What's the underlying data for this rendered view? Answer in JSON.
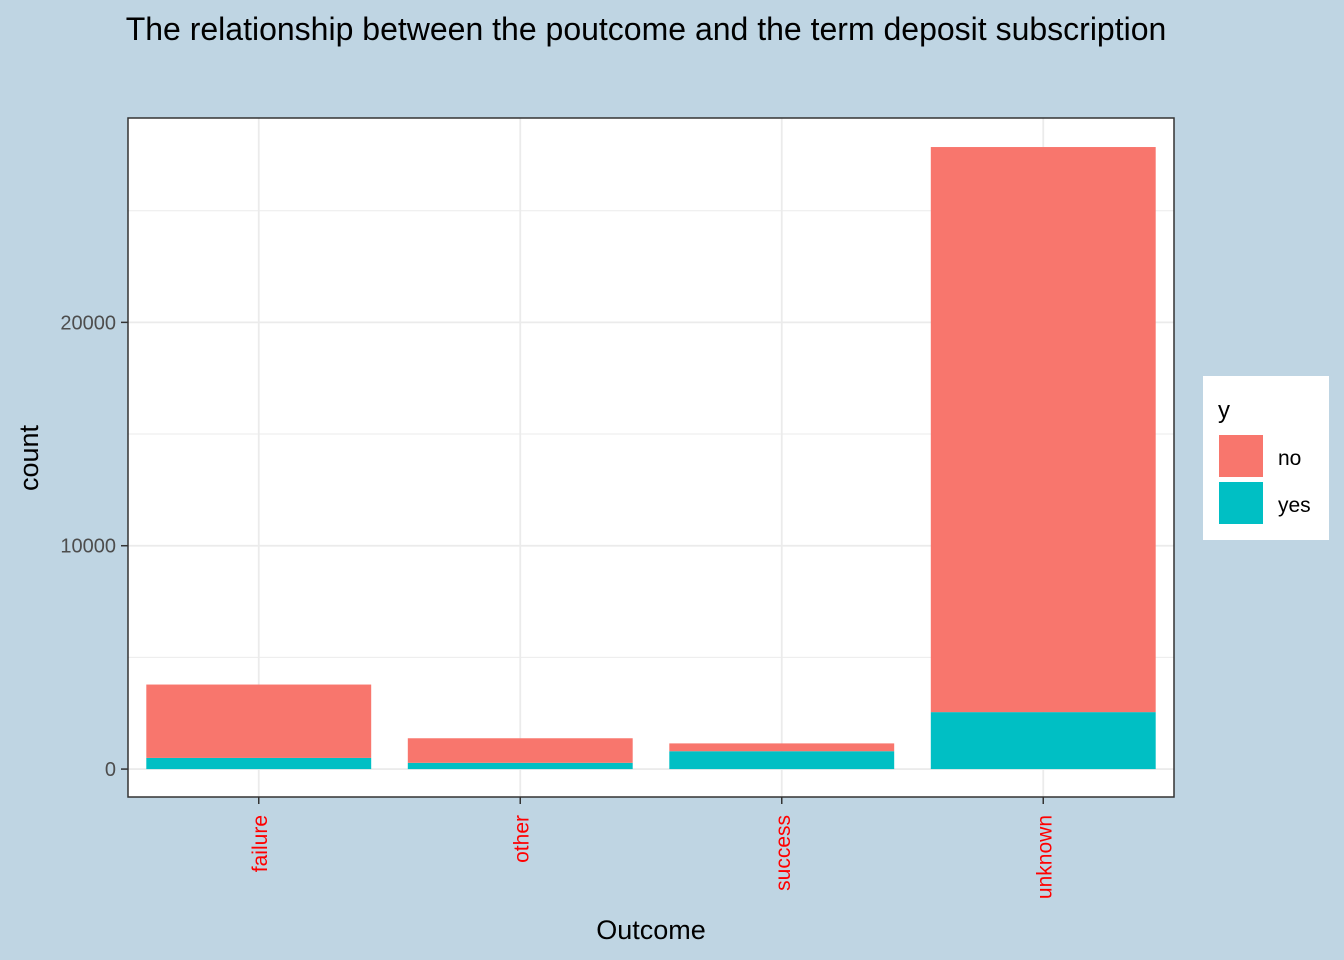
{
  "colors": {
    "background": "#bfd5e3",
    "panel": "#ffffff",
    "grid": "#ebebeb",
    "axis_text": "#4d4d4d",
    "x_tick_text": "#ff0000",
    "no": "#f8766d",
    "yes": "#00bfc4",
    "text": "#000000"
  },
  "chart_data": {
    "type": "bar",
    "stacked": true,
    "title": "The relationship between the poutcome and the term deposit subscription",
    "xlabel": "Outcome",
    "ylabel": "count",
    "categories": [
      "failure",
      "other",
      "success",
      "unknown"
    ],
    "series": [
      {
        "name": "no",
        "values": [
          3285,
          1100,
          350,
          25300
        ]
      },
      {
        "name": "yes",
        "values": [
          500,
          280,
          800,
          2550
        ]
      }
    ],
    "yticks": [
      0,
      10000,
      20000
    ],
    "ylim": [
      -1250,
      29150
    ],
    "grid": true,
    "legend": {
      "title": "y",
      "entries": [
        "no",
        "yes"
      ],
      "position": "right"
    }
  }
}
